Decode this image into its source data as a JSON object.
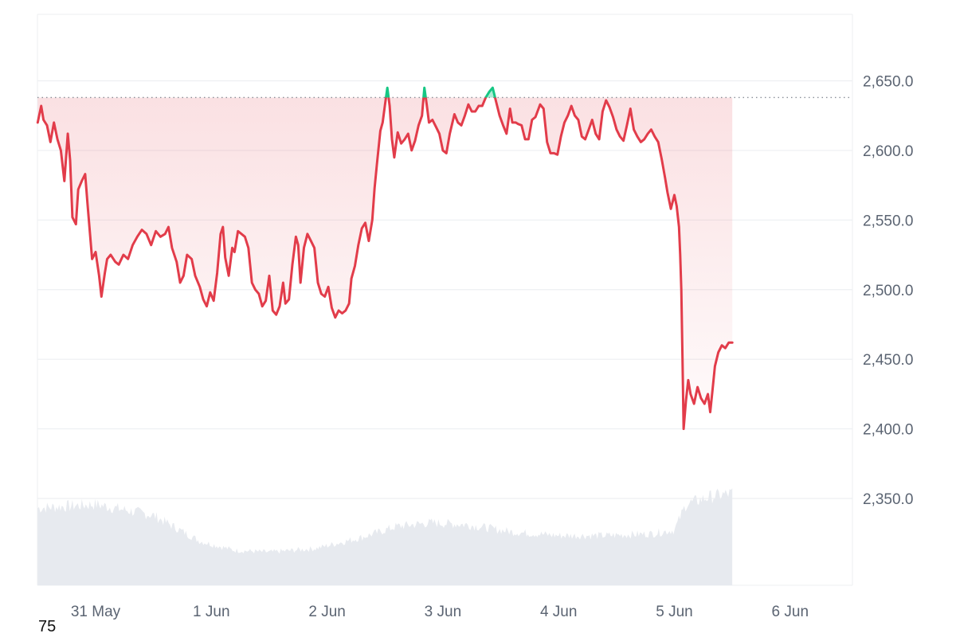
{
  "corner_label": "75",
  "colors": {
    "down": "#E23C4A",
    "up": "#16C784",
    "grid": "#EDEFF2",
    "tick_text": "#5B6472",
    "volume": "#E7EAEF",
    "reference_line": "#8A8F98"
  },
  "chart_data": {
    "type": "line",
    "x_unit": "date",
    "reference_value": 2638,
    "ylim": [
      2305,
      2680
    ],
    "y_ticks": [
      2350,
      2400,
      2450,
      2500,
      2550,
      2600,
      2650
    ],
    "y_tick_labels": [
      "2,350.0",
      "2,400.0",
      "2,450.0",
      "2,500.0",
      "2,550.0",
      "2,600.0",
      "2,650.0"
    ],
    "x_ticks": [
      "31 May",
      "1 Jun",
      "2 Jun",
      "3 Jun",
      "4 Jun",
      "5 Jun",
      "6 Jun"
    ],
    "xlim_days": [
      -0.5,
      6.55
    ],
    "price_points": [
      [
        -0.5,
        2620
      ],
      [
        -0.47,
        2632
      ],
      [
        -0.45,
        2622
      ],
      [
        -0.42,
        2618
      ],
      [
        -0.39,
        2606
      ],
      [
        -0.36,
        2620
      ],
      [
        -0.33,
        2608
      ],
      [
        -0.3,
        2600
      ],
      [
        -0.27,
        2578
      ],
      [
        -0.24,
        2612
      ],
      [
        -0.22,
        2593
      ],
      [
        -0.2,
        2552
      ],
      [
        -0.17,
        2547
      ],
      [
        -0.15,
        2572
      ],
      [
        -0.12,
        2578
      ],
      [
        -0.09,
        2583
      ],
      [
        -0.07,
        2562
      ],
      [
        -0.03,
        2522
      ],
      [
        0.0,
        2527
      ],
      [
        0.03,
        2510
      ],
      [
        0.05,
        2495
      ],
      [
        0.08,
        2512
      ],
      [
        0.1,
        2522
      ],
      [
        0.13,
        2525
      ],
      [
        0.17,
        2520
      ],
      [
        0.2,
        2518
      ],
      [
        0.24,
        2525
      ],
      [
        0.28,
        2522
      ],
      [
        0.32,
        2532
      ],
      [
        0.36,
        2538
      ],
      [
        0.4,
        2543
      ],
      [
        0.44,
        2540
      ],
      [
        0.48,
        2532
      ],
      [
        0.52,
        2542
      ],
      [
        0.56,
        2538
      ],
      [
        0.6,
        2540
      ],
      [
        0.63,
        2545
      ],
      [
        0.66,
        2530
      ],
      [
        0.7,
        2520
      ],
      [
        0.73,
        2505
      ],
      [
        0.76,
        2510
      ],
      [
        0.79,
        2525
      ],
      [
        0.83,
        2522
      ],
      [
        0.86,
        2510
      ],
      [
        0.9,
        2502
      ],
      [
        0.93,
        2493
      ],
      [
        0.96,
        2488
      ],
      [
        0.99,
        2498
      ],
      [
        1.02,
        2492
      ],
      [
        1.05,
        2512
      ],
      [
        1.08,
        2540
      ],
      [
        1.1,
        2545
      ],
      [
        1.12,
        2523
      ],
      [
        1.15,
        2510
      ],
      [
        1.18,
        2530
      ],
      [
        1.2,
        2527
      ],
      [
        1.23,
        2542
      ],
      [
        1.26,
        2540
      ],
      [
        1.29,
        2538
      ],
      [
        1.32,
        2530
      ],
      [
        1.35,
        2505
      ],
      [
        1.38,
        2500
      ],
      [
        1.41,
        2497
      ],
      [
        1.44,
        2488
      ],
      [
        1.47,
        2492
      ],
      [
        1.5,
        2510
      ],
      [
        1.53,
        2485
      ],
      [
        1.56,
        2482
      ],
      [
        1.59,
        2488
      ],
      [
        1.62,
        2505
      ],
      [
        1.64,
        2490
      ],
      [
        1.67,
        2493
      ],
      [
        1.7,
        2518
      ],
      [
        1.73,
        2538
      ],
      [
        1.75,
        2532
      ],
      [
        1.77,
        2505
      ],
      [
        1.8,
        2530
      ],
      [
        1.83,
        2540
      ],
      [
        1.86,
        2535
      ],
      [
        1.89,
        2530
      ],
      [
        1.92,
        2505
      ],
      [
        1.95,
        2497
      ],
      [
        1.98,
        2495
      ],
      [
        2.01,
        2502
      ],
      [
        2.04,
        2487
      ],
      [
        2.07,
        2480
      ],
      [
        2.1,
        2485
      ],
      [
        2.13,
        2483
      ],
      [
        2.16,
        2485
      ],
      [
        2.19,
        2490
      ],
      [
        2.21,
        2508
      ],
      [
        2.24,
        2517
      ],
      [
        2.27,
        2532
      ],
      [
        2.3,
        2544
      ],
      [
        2.33,
        2548
      ],
      [
        2.36,
        2535
      ],
      [
        2.39,
        2550
      ],
      [
        2.41,
        2573
      ],
      [
        2.43,
        2590
      ],
      [
        2.46,
        2614
      ],
      [
        2.48,
        2620
      ],
      [
        2.5,
        2633
      ],
      [
        2.52,
        2645
      ],
      [
        2.54,
        2632
      ],
      [
        2.56,
        2608
      ],
      [
        2.58,
        2595
      ],
      [
        2.61,
        2613
      ],
      [
        2.64,
        2605
      ],
      [
        2.67,
        2608
      ],
      [
        2.7,
        2612
      ],
      [
        2.73,
        2600
      ],
      [
        2.76,
        2607
      ],
      [
        2.79,
        2618
      ],
      [
        2.82,
        2625
      ],
      [
        2.84,
        2645
      ],
      [
        2.86,
        2633
      ],
      [
        2.88,
        2620
      ],
      [
        2.91,
        2622
      ],
      [
        2.94,
        2617
      ],
      [
        2.97,
        2612
      ],
      [
        3.0,
        2600
      ],
      [
        3.03,
        2598
      ],
      [
        3.06,
        2612
      ],
      [
        3.1,
        2626
      ],
      [
        3.13,
        2620
      ],
      [
        3.16,
        2618
      ],
      [
        3.19,
        2625
      ],
      [
        3.22,
        2633
      ],
      [
        3.25,
        2628
      ],
      [
        3.28,
        2628
      ],
      [
        3.31,
        2632
      ],
      [
        3.34,
        2632
      ],
      [
        3.37,
        2638
      ],
      [
        3.4,
        2642
      ],
      [
        3.43,
        2645
      ],
      [
        3.46,
        2635
      ],
      [
        3.49,
        2625
      ],
      [
        3.52,
        2618
      ],
      [
        3.55,
        2612
      ],
      [
        3.58,
        2630
      ],
      [
        3.6,
        2620
      ],
      [
        3.63,
        2620
      ],
      [
        3.65,
        2619
      ],
      [
        3.68,
        2618
      ],
      [
        3.71,
        2608
      ],
      [
        3.74,
        2608
      ],
      [
        3.77,
        2622
      ],
      [
        3.8,
        2624
      ],
      [
        3.84,
        2633
      ],
      [
        3.87,
        2630
      ],
      [
        3.9,
        2606
      ],
      [
        3.93,
        2598
      ],
      [
        3.96,
        2598
      ],
      [
        3.99,
        2597
      ],
      [
        4.02,
        2610
      ],
      [
        4.05,
        2620
      ],
      [
        4.08,
        2625
      ],
      [
        4.11,
        2632
      ],
      [
        4.14,
        2625
      ],
      [
        4.17,
        2622
      ],
      [
        4.2,
        2610
      ],
      [
        4.23,
        2608
      ],
      [
        4.26,
        2615
      ],
      [
        4.29,
        2622
      ],
      [
        4.32,
        2612
      ],
      [
        4.35,
        2608
      ],
      [
        4.38,
        2628
      ],
      [
        4.41,
        2636
      ],
      [
        4.44,
        2631
      ],
      [
        4.47,
        2624
      ],
      [
        4.5,
        2615
      ],
      [
        4.53,
        2610
      ],
      [
        4.56,
        2607
      ],
      [
        4.59,
        2618
      ],
      [
        4.62,
        2630
      ],
      [
        4.65,
        2615
      ],
      [
        4.68,
        2610
      ],
      [
        4.71,
        2606
      ],
      [
        4.74,
        2608
      ],
      [
        4.77,
        2612
      ],
      [
        4.8,
        2615
      ],
      [
        4.83,
        2610
      ],
      [
        4.86,
        2606
      ],
      [
        4.89,
        2594
      ],
      [
        4.92,
        2580
      ],
      [
        4.94,
        2570
      ],
      [
        4.97,
        2558
      ],
      [
        5.0,
        2568
      ],
      [
        5.02,
        2560
      ],
      [
        5.04,
        2545
      ],
      [
        5.05,
        2525
      ],
      [
        5.06,
        2500
      ],
      [
        5.07,
        2450
      ],
      [
        5.08,
        2400
      ],
      [
        5.1,
        2420
      ],
      [
        5.12,
        2435
      ],
      [
        5.14,
        2425
      ],
      [
        5.17,
        2418
      ],
      [
        5.2,
        2430
      ],
      [
        5.23,
        2422
      ],
      [
        5.26,
        2418
      ],
      [
        5.29,
        2425
      ],
      [
        5.31,
        2412
      ],
      [
        5.33,
        2428
      ],
      [
        5.35,
        2445
      ],
      [
        5.38,
        2455
      ],
      [
        5.41,
        2460
      ],
      [
        5.44,
        2458
      ],
      [
        5.47,
        2462
      ],
      [
        5.5,
        2462
      ]
    ],
    "volume_profile": [
      [
        -0.5,
        0.42
      ],
      [
        0.0,
        0.44
      ],
      [
        0.5,
        0.38
      ],
      [
        0.9,
        0.24
      ],
      [
        1.2,
        0.19
      ],
      [
        1.5,
        0.18
      ],
      [
        1.9,
        0.2
      ],
      [
        2.3,
        0.26
      ],
      [
        2.6,
        0.32
      ],
      [
        2.9,
        0.34
      ],
      [
        3.2,
        0.33
      ],
      [
        3.6,
        0.29
      ],
      [
        4.0,
        0.27
      ],
      [
        4.4,
        0.27
      ],
      [
        4.8,
        0.28
      ],
      [
        5.0,
        0.3
      ],
      [
        5.1,
        0.44
      ],
      [
        5.3,
        0.48
      ],
      [
        5.5,
        0.5
      ]
    ]
  }
}
